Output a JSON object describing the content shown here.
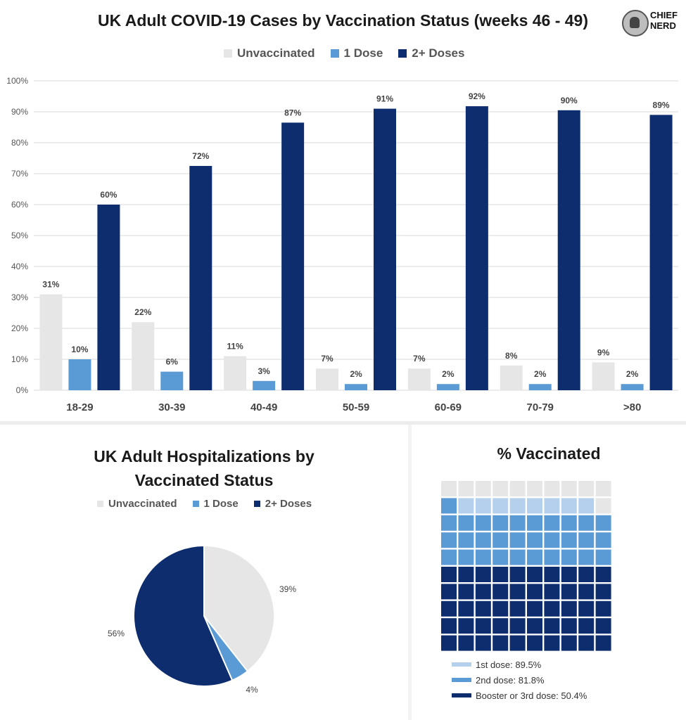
{
  "bar_chart": {
    "title": "UK Adult COVID-19 Cases by Vaccination Status (weeks 46 - 49)",
    "legend": [
      "Unvaccinated",
      "1 Dose",
      "2+ Doses"
    ]
  },
  "pie_chart": {
    "title_line1": "UK Adult Hospitalizations by",
    "title_line2": "Vaccinated Status",
    "legend": [
      "Unvaccinated",
      "1 Dose",
      "2+ Doses"
    ]
  },
  "waffle_chart": {
    "title": "% Vaccinated",
    "legend": [
      "1st dose: 89.5%",
      "2nd dose: 81.8%",
      "Booster or 3rd dose: 50.4%"
    ]
  },
  "logo": {
    "line1": "CHIEF",
    "line2": "NERD"
  },
  "colors": {
    "unvaccinated": "#e6e6e6",
    "one_dose": "#5b9bd5",
    "two_plus": "#0d2d6e",
    "first_dose_light": "#b4d0ec",
    "grid": "#d9d9d9"
  },
  "chart_data": [
    {
      "type": "bar",
      "title": "UK Adult COVID-19 Cases by Vaccination Status (weeks 46 - 49)",
      "categories": [
        "18-29",
        "30-39",
        "40-49",
        "50-59",
        "60-69",
        "70-79",
        ">80"
      ],
      "series": [
        {
          "name": "Unvaccinated",
          "values": [
            31,
            22,
            11,
            7,
            7,
            8,
            9
          ],
          "labels": [
            "31%",
            "22%",
            "11%",
            "7%",
            "7%",
            "8%",
            "9%"
          ]
        },
        {
          "name": "1 Dose",
          "values": [
            10,
            6,
            3,
            2,
            2,
            2,
            2
          ],
          "labels": [
            "10%",
            "6%",
            "3%",
            "2%",
            "2%",
            "2%",
            "2%"
          ]
        },
        {
          "name": "2+ Doses",
          "values": [
            60,
            72.5,
            86.5,
            91,
            91.8,
            90.5,
            89
          ],
          "labels": [
            "60%",
            "72%",
            "87%",
            "91%",
            "92%",
            "90%",
            "89%"
          ]
        }
      ],
      "ylim": [
        0,
        100
      ],
      "yticks": [
        "0%",
        "10%",
        "20%",
        "30%",
        "40%",
        "50%",
        "60%",
        "70%",
        "80%",
        "90%",
        "100%"
      ],
      "grid": true,
      "legend_position": "top"
    },
    {
      "type": "pie",
      "title": "UK Adult Hospitalizations by Vaccinated Status",
      "slices": [
        {
          "name": "Unvaccinated",
          "value": 39,
          "label": "39%"
        },
        {
          "name": "1 Dose",
          "value": 4,
          "label": "4%"
        },
        {
          "name": "2+ Doses",
          "value": 56,
          "label": "56%"
        }
      ],
      "legend_position": "top"
    },
    {
      "type": "waffle",
      "title": "% Vaccinated",
      "grid": "10x10",
      "rows": [
        [
          "u",
          "u",
          "u",
          "u",
          "u",
          "u",
          "u",
          "u",
          "u",
          "u"
        ],
        [
          "s",
          "f",
          "f",
          "f",
          "f",
          "f",
          "f",
          "f",
          "f",
          "u"
        ],
        [
          "s",
          "s",
          "s",
          "s",
          "s",
          "s",
          "s",
          "s",
          "s",
          "s"
        ],
        [
          "s",
          "s",
          "s",
          "s",
          "s",
          "s",
          "s",
          "s",
          "s",
          "s"
        ],
        [
          "s",
          "s",
          "s",
          "s",
          "s",
          "s",
          "s",
          "s",
          "s",
          "s"
        ],
        [
          "b",
          "b",
          "b",
          "b",
          "b",
          "b",
          "b",
          "b",
          "b",
          "b"
        ],
        [
          "b",
          "b",
          "b",
          "b",
          "b",
          "b",
          "b",
          "b",
          "b",
          "b"
        ],
        [
          "b",
          "b",
          "b",
          "b",
          "b",
          "b",
          "b",
          "b",
          "b",
          "b"
        ],
        [
          "b",
          "b",
          "b",
          "b",
          "b",
          "b",
          "b",
          "b",
          "b",
          "b"
        ],
        [
          "b",
          "b",
          "b",
          "b",
          "b",
          "b",
          "b",
          "b",
          "b",
          "b"
        ]
      ],
      "series": [
        {
          "name": "1st dose",
          "value": 89.5
        },
        {
          "name": "2nd dose",
          "value": 81.8
        },
        {
          "name": "Booster or 3rd dose",
          "value": 50.4
        }
      ]
    }
  ]
}
